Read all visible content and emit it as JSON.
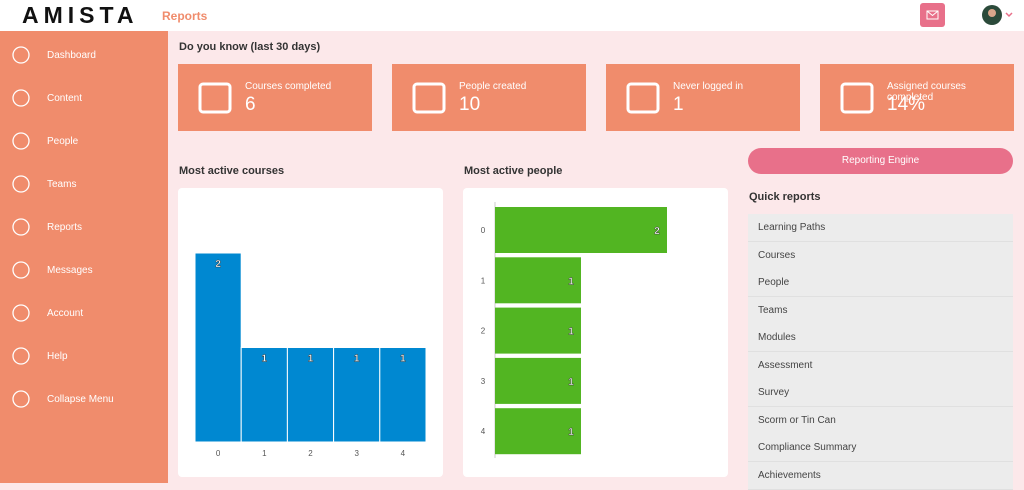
{
  "header": {
    "logo": "AMISTA",
    "section": "Reports"
  },
  "sidebar": {
    "items": [
      "Dashboard",
      "Content",
      "People",
      "Teams",
      "Reports",
      "Messages",
      "Account",
      "Help",
      "Collapse Menu"
    ]
  },
  "stats": {
    "title": "Do you know (last 30 days)",
    "cards": [
      {
        "label": "Courses completed",
        "value": "6"
      },
      {
        "label": "People created",
        "value": "10"
      },
      {
        "label": "Never logged in",
        "value": "1"
      },
      {
        "label": "Assigned courses completed",
        "value": "14%"
      }
    ]
  },
  "chart_data": [
    {
      "type": "bar",
      "title": "Most active courses",
      "categories": [
        "0",
        "1",
        "2",
        "3",
        "4"
      ],
      "values": [
        2,
        1,
        1,
        1,
        1
      ],
      "color": "#0088d1",
      "ylim": [
        0,
        2
      ]
    },
    {
      "type": "barh",
      "title": "Most active people",
      "categories": [
        "0",
        "1",
        "2",
        "3",
        "4"
      ],
      "values": [
        2,
        1,
        1,
        1,
        1
      ],
      "color": "#52b522",
      "xlim": [
        0,
        2
      ]
    }
  ],
  "reporting_engine": "Reporting Engine",
  "quick_reports": {
    "title": "Quick reports",
    "items": [
      "Learning Paths",
      "Courses",
      "People",
      "Teams",
      "Modules",
      "Assessment",
      "Survey",
      "Scorm or Tin Can",
      "Compliance Summary",
      "Achievements"
    ]
  }
}
